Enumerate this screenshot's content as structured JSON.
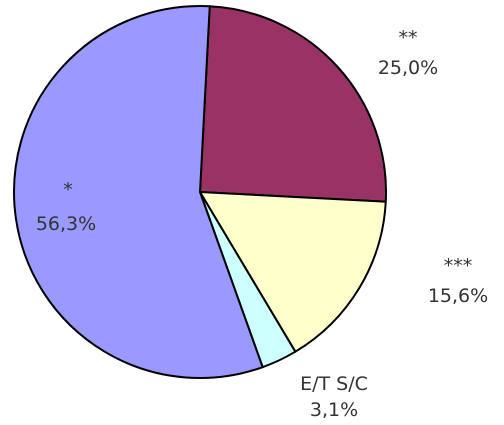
{
  "chart_data": {
    "type": "pie",
    "slices": [
      {
        "category": "**",
        "value": 25.0,
        "value_label": "25,0%",
        "color": "#993366"
      },
      {
        "category": "***",
        "value": 15.6,
        "value_label": "15,6%",
        "color": "#FFFFCC"
      },
      {
        "category": "E/T  S/C",
        "value": 3.1,
        "value_label": "3,1%",
        "color": "#CCFFFF"
      },
      {
        "category": "*",
        "value": 56.3,
        "value_label": "56,3%",
        "color": "#9999FF"
      }
    ],
    "start_angle_deg": 3,
    "direction": "clockwise",
    "legend": "none"
  }
}
